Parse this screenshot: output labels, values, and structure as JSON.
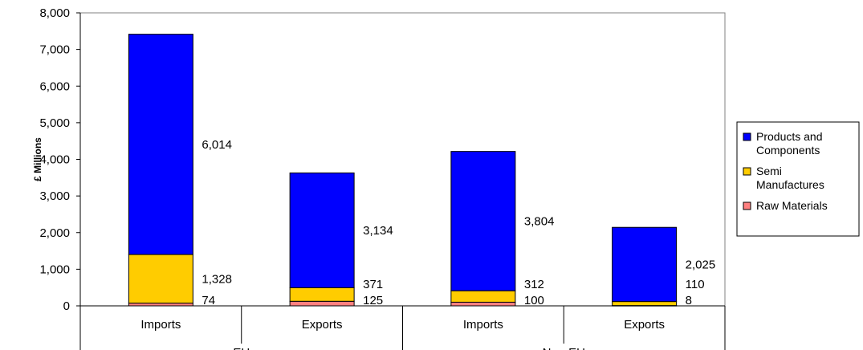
{
  "chart_data": {
    "type": "bar",
    "stacked": true,
    "ylabel": "£ Millions",
    "ylim": [
      0,
      8000
    ],
    "yticks": [
      "0",
      "1,000",
      "2,000",
      "3,000",
      "4,000",
      "5,000",
      "6,000",
      "7,000",
      "8,000"
    ],
    "ytick_values": [
      0,
      1000,
      2000,
      3000,
      4000,
      5000,
      6000,
      7000,
      8000
    ],
    "categories": [
      "Imports",
      "Exports",
      "Imports",
      "Exports"
    ],
    "groups": [
      {
        "label": "EU",
        "span": [
          0,
          1
        ]
      },
      {
        "label": "Non-EU",
        "span": [
          2,
          3
        ]
      }
    ],
    "series": [
      {
        "name": "Raw Materials",
        "color": "#ff8080",
        "values": [
          74,
          125,
          100,
          8
        ],
        "labels": [
          "74",
          "125",
          "100",
          "8"
        ]
      },
      {
        "name": "Semi Manufactures",
        "color": "#ffcc00",
        "values": [
          1328,
          371,
          312,
          110
        ],
        "labels": [
          "1,328",
          "371",
          "312",
          "110"
        ]
      },
      {
        "name": "Products and Components",
        "color": "#0000ff",
        "values": [
          6014,
          3134,
          3804,
          2025
        ],
        "labels": [
          "6,014",
          "3,134",
          "3,804",
          "2,025"
        ]
      }
    ],
    "legend": {
      "placement": "right",
      "entries": [
        {
          "lines": [
            "Products and",
            "Components"
          ],
          "color": "#0000ff"
        },
        {
          "lines": [
            "Semi",
            "Manufactures"
          ],
          "color": "#ffcc00"
        },
        {
          "lines": [
            "Raw Materials"
          ],
          "color": "#ff8080"
        }
      ]
    },
    "grid": false
  }
}
